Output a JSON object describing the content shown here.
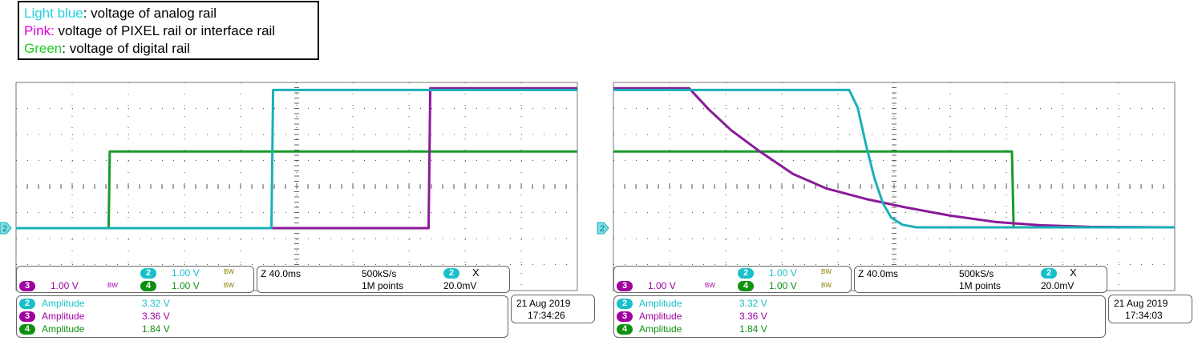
{
  "legend": {
    "rows": [
      {
        "key": "Light blue",
        "desc": ": voltage of analog rail",
        "color": "#22d3e0"
      },
      {
        "key": "Pink:",
        "desc": " voltage of PIXEL rail or interface rail",
        "color": "#e000e0"
      },
      {
        "key": "Green",
        "desc": ": voltage of digital rail",
        "color": "#22cc22"
      }
    ]
  },
  "colors": {
    "ch2": "#1ab0b8",
    "ch3": "#8b1a9a",
    "ch4": "#1a9a2a",
    "grid": "#555555",
    "ch2_text": "#18c0cc",
    "ch3_text": "#a000a0",
    "ch4_text": "#109010"
  },
  "scopes": [
    {
      "id": "power-up",
      "ground_marker": "2",
      "settings": {
        "ch2_badge": "2",
        "ch2_scale": "1.00 V",
        "ch3_badge": "3",
        "ch3_scale": "1.00 V",
        "ch4_badge": "4",
        "ch4_scale": "1.00 V",
        "bw_label": "BW",
        "timebase": "Z 40.0ms",
        "sample_rate": "500kS/s",
        "points": "1M points",
        "trig_badge": "2",
        "trig_symbol": "Χ",
        "trig_level": "20.0mV"
      },
      "measurements": [
        {
          "badge": "2",
          "label": "Amplitude",
          "value": "3.32 V"
        },
        {
          "badge": "3",
          "label": "Amplitude",
          "value": "3.36 V"
        },
        {
          "badge": "4",
          "label": "Amplitude",
          "value": "1.84 V"
        }
      ],
      "date": "21 Aug  2019",
      "time": "17:34:26"
    },
    {
      "id": "power-down",
      "ground_marker": "2",
      "settings": {
        "ch2_badge": "2",
        "ch2_scale": "1.00 V",
        "ch3_badge": "3",
        "ch3_scale": "1.00 V",
        "ch4_badge": "4",
        "ch4_scale": "1.00 V",
        "bw_label": "BW",
        "timebase": "Z 40.0ms",
        "sample_rate": "500kS/s",
        "points": "1M points",
        "trig_badge": "2",
        "trig_symbol": "Χ",
        "trig_level": "20.0mV"
      },
      "measurements": [
        {
          "badge": "2",
          "label": "Amplitude",
          "value": "3.32 V"
        },
        {
          "badge": "3",
          "label": "Amplitude",
          "value": "3.36 V"
        },
        {
          "badge": "4",
          "label": "Amplitude",
          "value": "1.84 V"
        }
      ],
      "date": "21 Aug  2019",
      "time": "17:34:03"
    }
  ],
  "chart_data": [
    {
      "type": "line",
      "title": "",
      "xlabel": "",
      "ylabel": "",
      "x_unit": "divisions",
      "y_unit": "V",
      "xlim": [
        0,
        10
      ],
      "ylim": [
        -1.5,
        3.5
      ],
      "grid": true,
      "series": [
        {
          "name": "2",
          "points": [
            [
              0,
              0
            ],
            [
              4.55,
              0
            ],
            [
              4.58,
              3.32
            ],
            [
              10,
              3.32
            ]
          ]
        },
        {
          "name": "3",
          "points": [
            [
              0,
              0
            ],
            [
              7.35,
              0
            ],
            [
              7.38,
              3.36
            ],
            [
              10,
              3.36
            ]
          ]
        },
        {
          "name": "4",
          "points": [
            [
              0,
              0
            ],
            [
              1.65,
              0
            ],
            [
              1.67,
              1.84
            ],
            [
              10,
              1.84
            ]
          ]
        }
      ]
    },
    {
      "type": "line",
      "title": "",
      "xlabel": "",
      "ylabel": "",
      "x_unit": "divisions",
      "y_unit": "V",
      "xlim": [
        0,
        10
      ],
      "ylim": [
        -1.5,
        3.5
      ],
      "grid": true,
      "series": [
        {
          "name": "2",
          "points": [
            [
              0,
              3.32
            ],
            [
              4.2,
              3.32
            ],
            [
              4.35,
              2.9
            ],
            [
              4.5,
              2.0
            ],
            [
              4.65,
              1.2
            ],
            [
              4.8,
              0.6
            ],
            [
              4.95,
              0.25
            ],
            [
              5.15,
              0.08
            ],
            [
              5.4,
              0.02
            ],
            [
              10,
              0.02
            ]
          ]
        },
        {
          "name": "3",
          "points": [
            [
              0,
              3.36
            ],
            [
              1.35,
              3.36
            ],
            [
              1.7,
              2.85
            ],
            [
              2.1,
              2.35
            ],
            [
              2.6,
              1.85
            ],
            [
              3.2,
              1.3
            ],
            [
              3.8,
              0.95
            ],
            [
              4.5,
              0.7
            ],
            [
              5.2,
              0.5
            ],
            [
              6.0,
              0.3
            ],
            [
              6.8,
              0.15
            ],
            [
              7.6,
              0.07
            ],
            [
              8.5,
              0.03
            ],
            [
              10,
              0.02
            ]
          ]
        },
        {
          "name": "4",
          "points": [
            [
              0,
              1.84
            ],
            [
              7.1,
              1.84
            ],
            [
              7.13,
              0.02
            ],
            [
              10,
              0.02
            ]
          ]
        }
      ]
    }
  ]
}
